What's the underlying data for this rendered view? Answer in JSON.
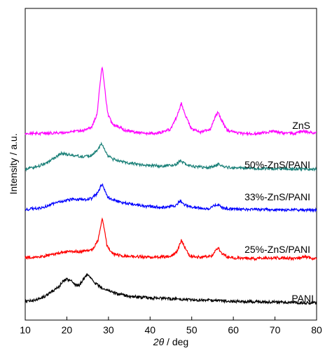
{
  "chart_data": {
    "type": "line",
    "title": "",
    "xlabel": "2θ / deg",
    "xlabel_symbol": "2θ",
    "xlabel_unit": " / deg",
    "ylabel": "Intensity / a.u.",
    "xlim": [
      10,
      80
    ],
    "xticks": [
      10,
      20,
      30,
      40,
      50,
      60,
      70,
      80
    ],
    "y_tick_labels": "none",
    "grid": false,
    "legend": "inline labels",
    "series": [
      {
        "name": "PANI",
        "color": "#000000",
        "points": [
          [
            10,
            0.08
          ],
          [
            12,
            0.1
          ],
          [
            14,
            0.16
          ],
          [
            16,
            0.28
          ],
          [
            18,
            0.42
          ],
          [
            19,
            0.55
          ],
          [
            20,
            0.6
          ],
          [
            21,
            0.58
          ],
          [
            22,
            0.48
          ],
          [
            23,
            0.45
          ],
          [
            24,
            0.62
          ],
          [
            25,
            0.72
          ],
          [
            26,
            0.62
          ],
          [
            27,
            0.5
          ],
          [
            28,
            0.42
          ],
          [
            30,
            0.34
          ],
          [
            32,
            0.26
          ],
          [
            35,
            0.2
          ],
          [
            40,
            0.16
          ],
          [
            45,
            0.14
          ],
          [
            50,
            0.12
          ],
          [
            55,
            0.1
          ],
          [
            60,
            0.08
          ],
          [
            65,
            0.07
          ],
          [
            70,
            0.06
          ],
          [
            75,
            0.05
          ],
          [
            80,
            0.04
          ]
        ]
      },
      {
        "name": "25%-ZnS/PANI",
        "color": "#ff0000",
        "points": [
          [
            10,
            0.05
          ],
          [
            14,
            0.08
          ],
          [
            18,
            0.16
          ],
          [
            20,
            0.2
          ],
          [
            22,
            0.2
          ],
          [
            24,
            0.2
          ],
          [
            26,
            0.24
          ],
          [
            27.5,
            0.45
          ],
          [
            28.2,
            0.85
          ],
          [
            28.5,
            1.0
          ],
          [
            28.9,
            0.8
          ],
          [
            29.6,
            0.35
          ],
          [
            31,
            0.14
          ],
          [
            33,
            0.1
          ],
          [
            40,
            0.06
          ],
          [
            45,
            0.08
          ],
          [
            46.5,
            0.2
          ],
          [
            47.5,
            0.48
          ],
          [
            48.3,
            0.3
          ],
          [
            49.5,
            0.1
          ],
          [
            52,
            0.06
          ],
          [
            55,
            0.1
          ],
          [
            56.3,
            0.3
          ],
          [
            57.2,
            0.15
          ],
          [
            59,
            0.05
          ],
          [
            65,
            0.03
          ],
          [
            70,
            0.05
          ],
          [
            75,
            0.03
          ],
          [
            77,
            0.07
          ],
          [
            80,
            0.02
          ]
        ]
      },
      {
        "name": "33%-ZnS/PANI",
        "color": "#0000ff",
        "points": [
          [
            10,
            0.04
          ],
          [
            14,
            0.12
          ],
          [
            18,
            0.3
          ],
          [
            20,
            0.38
          ],
          [
            22,
            0.42
          ],
          [
            24,
            0.4
          ],
          [
            26,
            0.44
          ],
          [
            27.5,
            0.65
          ],
          [
            28.2,
            0.9
          ],
          [
            28.5,
            0.95
          ],
          [
            29,
            0.75
          ],
          [
            29.8,
            0.5
          ],
          [
            31,
            0.4
          ],
          [
            33,
            0.3
          ],
          [
            38,
            0.18
          ],
          [
            43,
            0.12
          ],
          [
            46,
            0.18
          ],
          [
            47.3,
            0.36
          ],
          [
            48.5,
            0.2
          ],
          [
            50,
            0.12
          ],
          [
            54,
            0.08
          ],
          [
            56.2,
            0.22
          ],
          [
            57.5,
            0.1
          ],
          [
            60,
            0.06
          ],
          [
            70,
            0.04
          ],
          [
            80,
            0.03
          ]
        ]
      },
      {
        "name": "50%-ZnS/PANI",
        "color": "#1a8078",
        "points": [
          [
            10,
            0.05
          ],
          [
            13,
            0.15
          ],
          [
            15,
            0.3
          ],
          [
            17,
            0.5
          ],
          [
            18.5,
            0.68
          ],
          [
            20,
            0.65
          ],
          [
            22,
            0.6
          ],
          [
            24,
            0.55
          ],
          [
            26,
            0.6
          ],
          [
            27.5,
            0.85
          ],
          [
            28.4,
            1.1
          ],
          [
            29,
            0.9
          ],
          [
            29.8,
            0.6
          ],
          [
            31,
            0.45
          ],
          [
            33,
            0.35
          ],
          [
            38,
            0.22
          ],
          [
            43,
            0.16
          ],
          [
            46,
            0.22
          ],
          [
            47.3,
            0.38
          ],
          [
            48.5,
            0.25
          ],
          [
            51,
            0.14
          ],
          [
            54,
            0.1
          ],
          [
            56.4,
            0.24
          ],
          [
            58,
            0.12
          ],
          [
            62,
            0.08
          ],
          [
            70,
            0.06
          ],
          [
            80,
            0.05
          ]
        ]
      },
      {
        "name": "ZnS",
        "color": "#ff00ff",
        "points": [
          [
            10,
            0.05
          ],
          [
            15,
            0.06
          ],
          [
            20,
            0.08
          ],
          [
            24,
            0.12
          ],
          [
            26,
            0.2
          ],
          [
            27.3,
            0.5
          ],
          [
            28,
            1.2
          ],
          [
            28.5,
            1.55
          ],
          [
            29,
            1.15
          ],
          [
            29.8,
            0.5
          ],
          [
            31,
            0.25
          ],
          [
            32.5,
            0.2
          ],
          [
            34,
            0.12
          ],
          [
            38,
            0.06
          ],
          [
            42,
            0.06
          ],
          [
            45,
            0.15
          ],
          [
            46.5,
            0.45
          ],
          [
            47.5,
            0.72
          ],
          [
            48.5,
            0.45
          ],
          [
            50,
            0.15
          ],
          [
            52,
            0.08
          ],
          [
            54.5,
            0.15
          ],
          [
            55.5,
            0.4
          ],
          [
            56.3,
            0.52
          ],
          [
            57.2,
            0.35
          ],
          [
            58.5,
            0.12
          ],
          [
            62,
            0.05
          ],
          [
            66,
            0.05
          ],
          [
            68,
            0.08
          ],
          [
            70,
            0.1
          ],
          [
            72,
            0.06
          ],
          [
            75,
            0.05
          ],
          [
            76.5,
            0.11
          ],
          [
            78,
            0.08
          ],
          [
            80,
            0.06
          ]
        ]
      }
    ]
  }
}
